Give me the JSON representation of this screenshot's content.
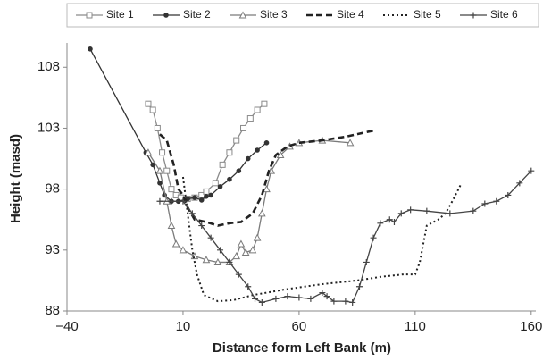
{
  "chart_data": {
    "type": "line",
    "xlabel": "Distance form Left Bank (m)",
    "ylabel": "Height (masd)",
    "xlim": [
      -40,
      162
    ],
    "ylim": [
      88,
      110
    ],
    "xticks": [
      {
        "value": -40,
        "label": "−40"
      },
      10,
      60,
      110,
      160
    ],
    "yticks": [
      88,
      93,
      98,
      103,
      108
    ],
    "grid": false,
    "legend": "top",
    "series": [
      {
        "name": "Site 1",
        "color": "#8a8a8a",
        "dash": "solid",
        "marker": "square-open",
        "x": [
          -5,
          -3,
          -1,
          1,
          3,
          5,
          7,
          9,
          12,
          15,
          18,
          20,
          24,
          27,
          30,
          33,
          36,
          39,
          42,
          45
        ],
        "values": [
          105,
          104.5,
          103,
          101,
          99.5,
          98,
          97.5,
          97.3,
          97.2,
          97.3,
          97.5,
          97.8,
          98.5,
          100,
          101,
          102,
          103,
          103.8,
          104.5,
          105
        ]
      },
      {
        "name": "Site 2",
        "color": "#333333",
        "dash": "solid",
        "marker": "circle-filled",
        "x": [
          -30,
          -6,
          -3,
          0,
          2,
          5,
          8,
          12,
          15,
          18,
          20,
          22,
          26,
          30,
          34,
          38,
          42,
          46
        ],
        "values": [
          109.5,
          101,
          100,
          98.5,
          97.5,
          97,
          97,
          97.2,
          97.3,
          97.1,
          97.4,
          97.5,
          98.2,
          98.8,
          99.5,
          100.5,
          101.2,
          101.8
        ]
      },
      {
        "name": "Site 3",
        "color": "#7a7a7a",
        "dash": "solid",
        "marker": "triangle-open",
        "x": [
          -5,
          0,
          3,
          5,
          7,
          10,
          15,
          20,
          25,
          30,
          33,
          35,
          37,
          40,
          42,
          44,
          46,
          48,
          52,
          56,
          60,
          70,
          82
        ],
        "values": [
          101,
          99.5,
          97,
          95,
          93.5,
          93,
          92.5,
          92.2,
          92,
          92,
          92.5,
          93.5,
          92.8,
          93,
          94,
          96,
          98,
          99.5,
          100.8,
          101.5,
          101.8,
          102,
          101.8
        ]
      },
      {
        "name": "Site 4",
        "color": "#222222",
        "dash": "dashed",
        "marker": "none",
        "x": [
          0,
          3,
          6,
          8,
          10,
          12,
          15,
          20,
          25,
          30,
          35,
          40,
          44,
          47,
          50,
          55,
          60,
          70,
          80,
          92
        ],
        "values": [
          102.5,
          102,
          100,
          98,
          97.5,
          96.5,
          95.5,
          95.3,
          95,
          95.2,
          95.3,
          96,
          97.5,
          99.5,
          100.8,
          101.5,
          101.8,
          102,
          102.3,
          102.8
        ]
      },
      {
        "name": "Site 5",
        "color": "#222222",
        "dash": "dotted",
        "marker": "none",
        "x": [
          10,
          12,
          14,
          16,
          19,
          25,
          32,
          40,
          55,
          70,
          85,
          95,
          105,
          110,
          112,
          115,
          120,
          123,
          126,
          130
        ],
        "values": [
          99,
          96,
          93,
          91,
          89.3,
          88.8,
          88.9,
          89.3,
          89.8,
          90.2,
          90.5,
          90.8,
          91,
          91,
          92,
          95,
          95.5,
          96,
          97,
          98.5
        ]
      },
      {
        "name": "Site 6",
        "color": "#444444",
        "dash": "solid",
        "marker": "plus",
        "x": [
          0,
          5,
          10,
          14,
          18,
          22,
          26,
          30,
          34,
          38,
          41,
          44,
          50,
          55,
          60,
          65,
          70,
          72,
          75,
          80,
          83,
          86,
          89,
          92,
          95,
          99,
          101,
          104,
          108,
          115,
          125,
          135,
          140,
          145,
          150,
          155,
          160
        ],
        "values": [
          97,
          97,
          97,
          96,
          95,
          94,
          93,
          92,
          91,
          90,
          89,
          88.7,
          89,
          89.2,
          89.1,
          89,
          89.5,
          89.2,
          88.8,
          88.8,
          88.7,
          90,
          92,
          94,
          95.2,
          95.5,
          95.3,
          96,
          96.3,
          96.2,
          96,
          96.2,
          96.8,
          97,
          97.5,
          98.5,
          99.5
        ]
      }
    ]
  }
}
